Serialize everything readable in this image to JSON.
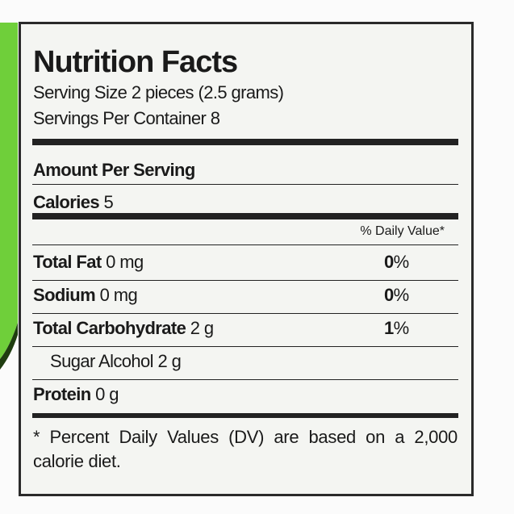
{
  "title": "Nutrition Facts",
  "serving_size": "Serving Size 2 pieces (2.5 grams)",
  "servings_per_container": "Servings Per Container 8",
  "amount_per_serving": "Amount Per Serving",
  "calories": {
    "label": "Calories",
    "value": "5"
  },
  "daily_value_header": "% Daily Value*",
  "nutrients": [
    {
      "name": "Total Fat",
      "amount": "0 mg",
      "dv": "0%",
      "bold": true
    },
    {
      "name": "Sodium",
      "amount": "0 mg",
      "dv": "0%",
      "bold": true
    },
    {
      "name": "Total Carbohydrate",
      "amount": "2 g",
      "dv": "1%",
      "bold": true
    },
    {
      "name": "Sugar Alcohol",
      "amount": "2 g",
      "bold": false
    },
    {
      "name": "Protein",
      "amount": "0 g",
      "bold": true
    }
  ],
  "footnote": "* Percent Daily Values (DV) are based on a 2,000 calorie diet."
}
